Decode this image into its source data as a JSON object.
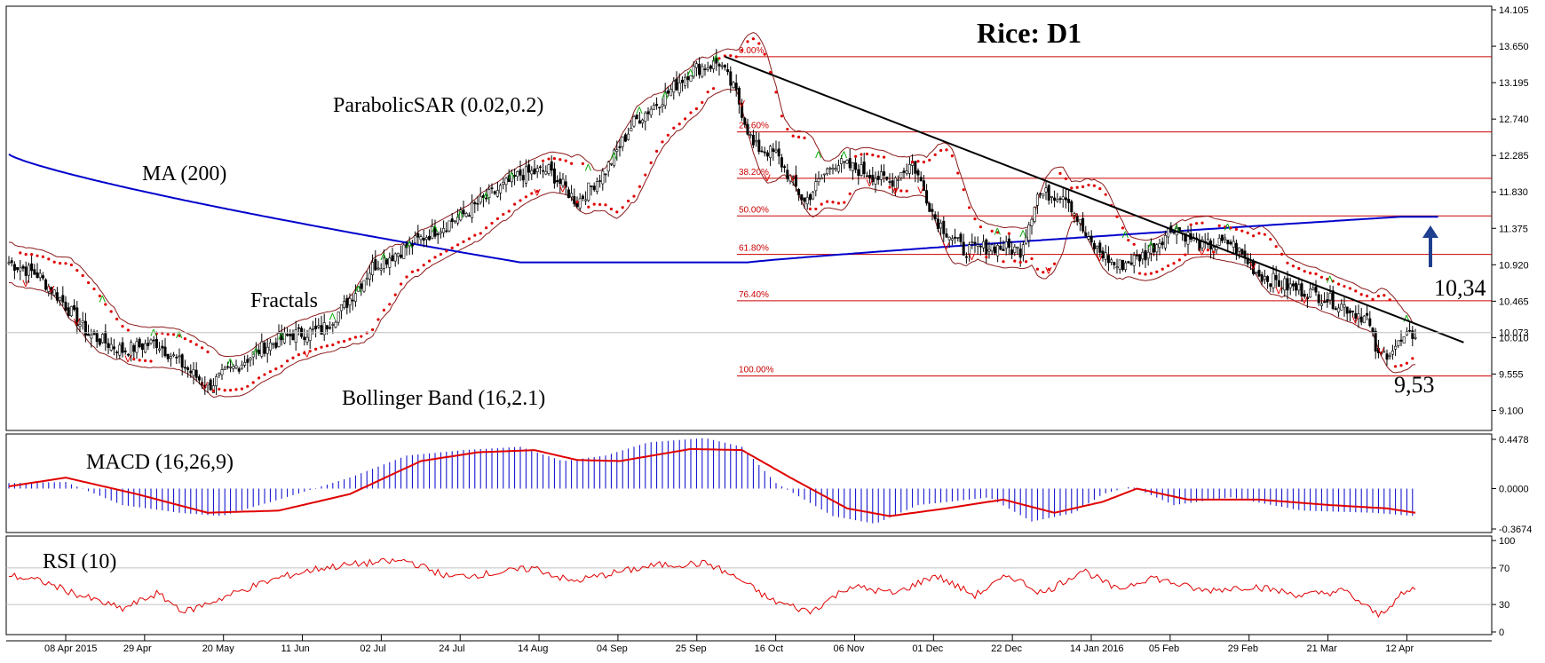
{
  "chart_data": [
    {
      "type": "candlestick",
      "title": "Rice: D1",
      "symbol": "Rice",
      "timeframe": "D1",
      "price_axis_ticks": [
        "14.105",
        "13.650",
        "13.195",
        "12.740",
        "12.285",
        "11.830",
        "11.375",
        "10.920",
        "10.465",
        "10.010",
        "9.555",
        "9.100"
      ],
      "current_price_label": "10.073",
      "date_ticks": [
        "08 Apr 2015",
        "29 Apr",
        "20 May",
        "11 Jun",
        "02 Jul",
        "24 Jul",
        "14 Aug",
        "04 Sep",
        "25 Sep",
        "16 Oct",
        "06 Nov",
        "01 Dec",
        "22 Dec",
        "14 Jan 2016",
        "05 Feb",
        "29 Feb",
        "21 Mar",
        "12 Apr"
      ],
      "ylim": [
        8.85,
        14.15
      ],
      "close_anchors": [
        [
          0,
          10.95
        ],
        [
          10,
          10.8
        ],
        [
          18,
          10.5
        ],
        [
          28,
          10.05
        ],
        [
          40,
          9.85
        ],
        [
          52,
          9.95
        ],
        [
          60,
          9.7
        ],
        [
          70,
          9.4
        ],
        [
          78,
          9.6
        ],
        [
          90,
          9.9
        ],
        [
          100,
          10.05
        ],
        [
          110,
          10.1
        ],
        [
          118,
          10.4
        ],
        [
          128,
          10.9
        ],
        [
          138,
          11.1
        ],
        [
          150,
          11.35
        ],
        [
          160,
          11.55
        ],
        [
          170,
          11.8
        ],
        [
          180,
          12.05
        ],
        [
          190,
          12.1
        ],
        [
          200,
          11.7
        ],
        [
          210,
          12.1
        ],
        [
          220,
          12.7
        ],
        [
          230,
          13.0
        ],
        [
          240,
          13.35
        ],
        [
          250,
          13.45
        ],
        [
          256,
          13.05
        ],
        [
          262,
          12.4
        ],
        [
          270,
          12.3
        ],
        [
          280,
          11.7
        ],
        [
          290,
          12.2
        ],
        [
          300,
          12.1
        ],
        [
          310,
          11.95
        ],
        [
          318,
          12.2
        ],
        [
          326,
          11.5
        ],
        [
          336,
          11.1
        ],
        [
          346,
          11.15
        ],
        [
          356,
          11.1
        ],
        [
          362,
          11.8
        ],
        [
          372,
          11.8
        ],
        [
          380,
          11.2
        ],
        [
          390,
          10.9
        ],
        [
          400,
          11.05
        ],
        [
          410,
          11.4
        ],
        [
          420,
          11.15
        ],
        [
          430,
          11.2
        ],
        [
          440,
          10.8
        ],
        [
          450,
          10.65
        ],
        [
          460,
          10.55
        ],
        [
          470,
          10.4
        ],
        [
          478,
          10.25
        ],
        [
          482,
          9.75
        ],
        [
          490,
          9.95
        ],
        [
          495,
          10.07
        ]
      ],
      "overlays": [
        {
          "name": "MA (200)",
          "color": "#0000cc",
          "start_value": 12.3,
          "min_value": 10.95,
          "end_value": 11.52
        },
        {
          "name": "ParabolicSAR (0.02,0.2)",
          "color": "#e00000"
        },
        {
          "name": "Bollinger Band (16,2.1)",
          "color": "#8b1a1a"
        },
        {
          "name": "Fractals",
          "up_color": "#00aa00",
          "down_color": "#e00000"
        }
      ],
      "trendline": {
        "from": [
          252,
          13.52
        ],
        "to": [
          512,
          9.95
        ],
        "color": "#000000"
      },
      "fibonacci": {
        "color": "#cc0000",
        "high": 13.52,
        "low": 9.53,
        "levels": [
          {
            "label": "0.00%",
            "value": 13.52
          },
          {
            "label": "23.60%",
            "value": 12.58
          },
          {
            "label": "38.20%",
            "value": 12.0
          },
          {
            "label": "50.00%",
            "value": 11.53
          },
          {
            "label": "61.80%",
            "value": 11.05
          },
          {
            "label": "76.40%",
            "value": 10.47
          },
          {
            "label": "100.00%",
            "value": 9.53
          }
        ]
      },
      "annotations": {
        "resistance_value": "10,34",
        "support_value": "9,53",
        "arrow_direction": "up",
        "arrow_color": "#1f3f8f"
      },
      "labels": {
        "ma": "MA (200)",
        "psar": "ParabolicSAR (0.02,0.2)",
        "fractals": "Fractals",
        "bollinger": "Bollinger Band (16,2.1)"
      }
    },
    {
      "type": "histogram+line",
      "title": "MACD (16,26,9)",
      "axis_ticks": [
        "0.4478",
        "0.0000",
        "-0.3674"
      ],
      "ylim": [
        -0.3674,
        0.4478
      ],
      "histogram_color": "#0000cc",
      "signal_color": "#e00000",
      "anchors": [
        [
          0,
          0.05
        ],
        [
          20,
          0.06
        ],
        [
          40,
          -0.15
        ],
        [
          60,
          -0.22
        ],
        [
          75,
          -0.25
        ],
        [
          95,
          -0.1
        ],
        [
          120,
          0.1
        ],
        [
          140,
          0.3
        ],
        [
          160,
          0.35
        ],
        [
          180,
          0.38
        ],
        [
          195,
          0.25
        ],
        [
          210,
          0.3
        ],
        [
          225,
          0.42
        ],
        [
          245,
          0.46
        ],
        [
          258,
          0.38
        ],
        [
          270,
          0.05
        ],
        [
          290,
          -0.25
        ],
        [
          305,
          -0.32
        ],
        [
          320,
          -0.15
        ],
        [
          345,
          -0.08
        ],
        [
          360,
          -0.3
        ],
        [
          375,
          -0.22
        ],
        [
          385,
          -0.05
        ],
        [
          395,
          0.02
        ],
        [
          410,
          -0.15
        ],
        [
          430,
          -0.08
        ],
        [
          455,
          -0.2
        ],
        [
          480,
          -0.22
        ],
        [
          495,
          -0.25
        ]
      ],
      "signal_anchors": [
        [
          0,
          0.02
        ],
        [
          20,
          0.1
        ],
        [
          45,
          -0.05
        ],
        [
          70,
          -0.22
        ],
        [
          95,
          -0.2
        ],
        [
          120,
          -0.05
        ],
        [
          145,
          0.25
        ],
        [
          165,
          0.33
        ],
        [
          185,
          0.35
        ],
        [
          200,
          0.26
        ],
        [
          215,
          0.25
        ],
        [
          240,
          0.36
        ],
        [
          258,
          0.35
        ],
        [
          275,
          0.1
        ],
        [
          295,
          -0.18
        ],
        [
          310,
          -0.25
        ],
        [
          330,
          -0.18
        ],
        [
          350,
          -0.1
        ],
        [
          368,
          -0.22
        ],
        [
          385,
          -0.12
        ],
        [
          397,
          0.0
        ],
        [
          415,
          -0.1
        ],
        [
          440,
          -0.1
        ],
        [
          465,
          -0.15
        ],
        [
          485,
          -0.18
        ],
        [
          495,
          -0.22
        ]
      ]
    },
    {
      "type": "line",
      "title": "RSI (10)",
      "axis_ticks": [
        "100",
        "70",
        "30",
        "0"
      ],
      "ylim": [
        0,
        100
      ],
      "color": "#e00000",
      "anchors": [
        [
          0,
          62
        ],
        [
          12,
          55
        ],
        [
          25,
          40
        ],
        [
          40,
          25
        ],
        [
          52,
          42
        ],
        [
          62,
          22
        ],
        [
          74,
          36
        ],
        [
          86,
          50
        ],
        [
          96,
          60
        ],
        [
          110,
          70
        ],
        [
          125,
          75
        ],
        [
          140,
          78
        ],
        [
          155,
          60
        ],
        [
          170,
          64
        ],
        [
          185,
          70
        ],
        [
          198,
          55
        ],
        [
          212,
          64
        ],
        [
          228,
          73
        ],
        [
          246,
          75
        ],
        [
          258,
          56
        ],
        [
          268,
          35
        ],
        [
          282,
          22
        ],
        [
          296,
          50
        ],
        [
          312,
          42
        ],
        [
          326,
          62
        ],
        [
          340,
          40
        ],
        [
          352,
          62
        ],
        [
          364,
          42
        ],
        [
          378,
          68
        ],
        [
          390,
          46
        ],
        [
          402,
          60
        ],
        [
          420,
          45
        ],
        [
          438,
          50
        ],
        [
          455,
          40
        ],
        [
          470,
          45
        ],
        [
          482,
          18
        ],
        [
          490,
          40
        ],
        [
          495,
          48
        ]
      ]
    }
  ]
}
